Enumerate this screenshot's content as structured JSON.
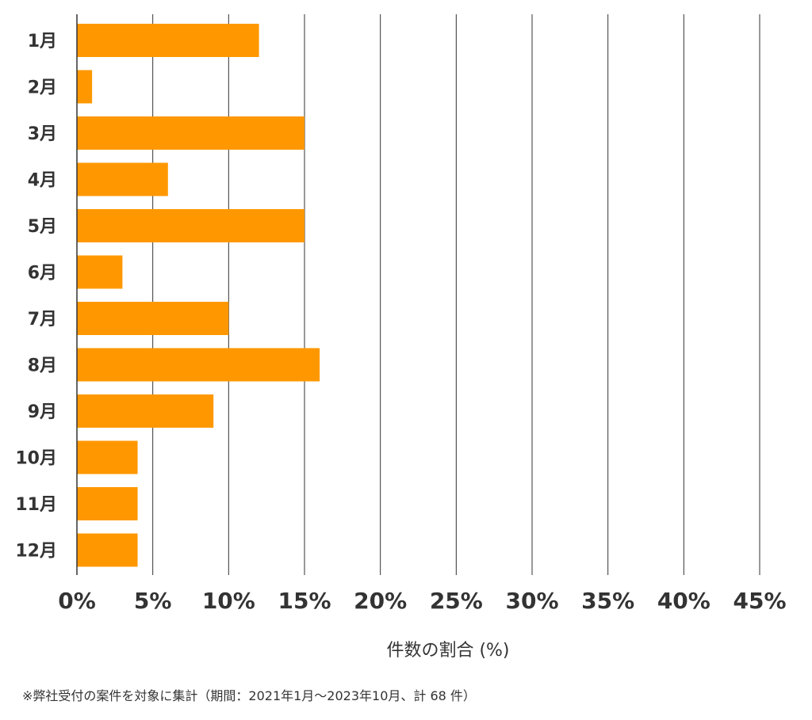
{
  "chart_data": {
    "type": "bar",
    "orientation": "horizontal",
    "categories": [
      "1月",
      "2月",
      "3月",
      "4月",
      "5月",
      "6月",
      "7月",
      "8月",
      "9月",
      "10月",
      "11月",
      "12月"
    ],
    "values": [
      12,
      1,
      15,
      6,
      15,
      3,
      10,
      16,
      9,
      4,
      4,
      4
    ],
    "xlabel": "件数の割合 (%)",
    "ylabel": "",
    "xlim": [
      0,
      45
    ],
    "xticks": [
      "0%",
      "5%",
      "10%",
      "15%",
      "20%",
      "25%",
      "30%",
      "35%",
      "40%",
      "45%"
    ],
    "grid": true,
    "bar_color": "#ff9800"
  },
  "footnote": "※弊社受付の案件を対象に集計（期間：2021年1月～2023年10月、計 68 件）",
  "colors": {
    "grid": "#333333",
    "text": "#333333"
  }
}
